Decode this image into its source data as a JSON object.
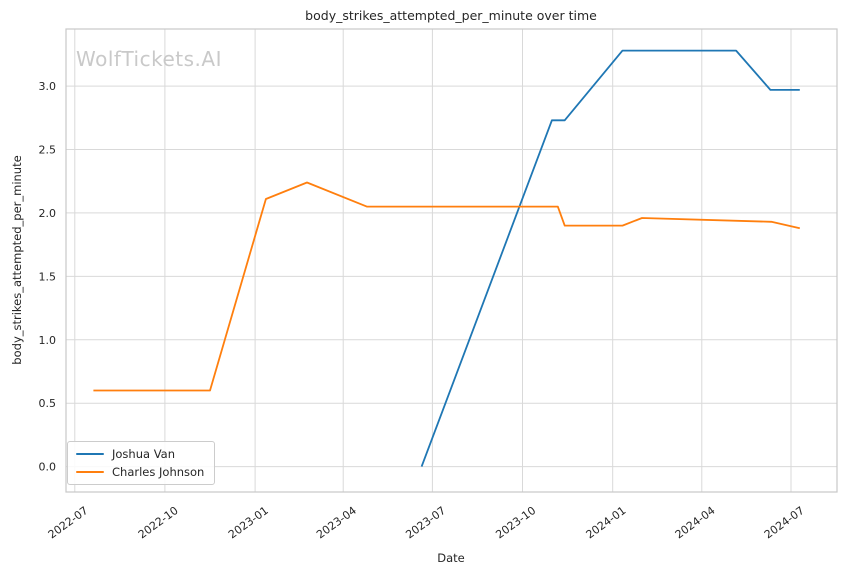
{
  "window": {
    "watermark": "WolfTickets.AI"
  },
  "chart_data": {
    "type": "line",
    "title": "body_strikes_attempted_per_minute over time",
    "xlabel": "Date",
    "ylabel": "body_strikes_attempted_per_minute",
    "grid": true,
    "legend_position": "lower left",
    "x_ticks": [
      {
        "label": "2022-07",
        "date": "2022-07-01"
      },
      {
        "label": "2022-10",
        "date": "2022-10-01"
      },
      {
        "label": "2023-01",
        "date": "2023-01-01"
      },
      {
        "label": "2023-04",
        "date": "2023-04-01"
      },
      {
        "label": "2023-07",
        "date": "2023-07-01"
      },
      {
        "label": "2023-10",
        "date": "2023-10-01"
      },
      {
        "label": "2024-01",
        "date": "2024-01-01"
      },
      {
        "label": "2024-04",
        "date": "2024-04-01"
      },
      {
        "label": "2024-07",
        "date": "2024-07-01"
      }
    ],
    "y_ticks": [
      0.0,
      0.5,
      1.0,
      1.5,
      2.0,
      2.5,
      3.0
    ],
    "xlim": [
      "2022-06-22",
      "2024-08-17"
    ],
    "ylim": [
      -0.2,
      3.45
    ],
    "series": [
      {
        "name": "Joshua Van",
        "color": "#1f77b4",
        "points": [
          [
            "2023-06-20",
            0.0
          ],
          [
            "2023-10-31",
            2.73
          ],
          [
            "2023-11-13",
            2.73
          ],
          [
            "2024-01-11",
            3.28
          ],
          [
            "2024-05-06",
            3.28
          ],
          [
            "2024-06-10",
            2.97
          ],
          [
            "2024-07-10",
            2.97
          ]
        ]
      },
      {
        "name": "Charles Johnson",
        "color": "#ff7f0e",
        "points": [
          [
            "2022-07-20",
            0.6
          ],
          [
            "2022-11-16",
            0.6
          ],
          [
            "2023-01-12",
            2.11
          ],
          [
            "2023-02-23",
            2.24
          ],
          [
            "2023-04-25",
            2.05
          ],
          [
            "2023-11-06",
            2.05
          ],
          [
            "2023-11-13",
            1.9
          ],
          [
            "2024-01-11",
            1.9
          ],
          [
            "2024-01-31",
            1.96
          ],
          [
            "2024-06-11",
            1.93
          ],
          [
            "2024-07-10",
            1.88
          ]
        ]
      }
    ],
    "style": {
      "grid_color": "#d9d9d9",
      "border_color": "#c8c8c8",
      "text_color": "#262626",
      "watermark_color": "#c9c9c9",
      "line_width": 1.8
    }
  }
}
